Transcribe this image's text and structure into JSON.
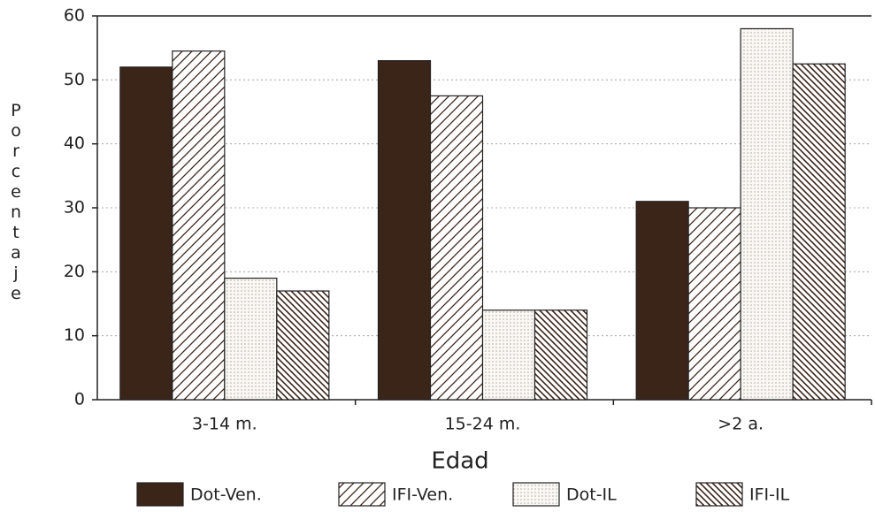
{
  "chart_data": {
    "type": "bar",
    "xlabel": "Edad",
    "ylabel": "Porcentaje",
    "categories": [
      "3-14 m.",
      "15-24 m.",
      ">2 a."
    ],
    "series": [
      {
        "name": "Dot-Ven.",
        "color": "#3b2519",
        "pattern": "solid",
        "values": [
          52,
          53,
          31
        ]
      },
      {
        "name": "IFI-Ven.",
        "color": "#3b2519",
        "pattern": "hatch-forward",
        "values": [
          54.5,
          47.5,
          30
        ]
      },
      {
        "name": "Dot-IL",
        "color": "#8a7a70",
        "pattern": "dots",
        "values": [
          19,
          14,
          58
        ]
      },
      {
        "name": "IFI-IL",
        "color": "#3b2519",
        "pattern": "hatch-back",
        "values": [
          17,
          14,
          52.5
        ]
      }
    ],
    "ylim": [
      0,
      60
    ],
    "yticks": [
      0,
      10,
      20,
      30,
      40,
      50,
      60
    ],
    "grid": true
  }
}
